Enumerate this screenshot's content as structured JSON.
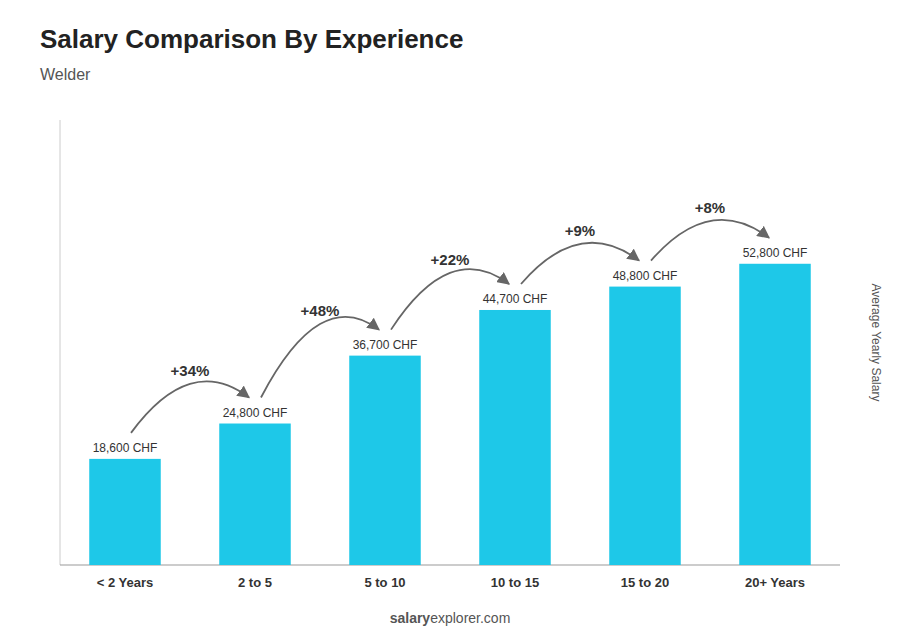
{
  "chart_data": {
    "type": "bar",
    "title": "Salary Comparison By Experience",
    "subtitle": "Welder",
    "ylabel": "Average Yearly Salary",
    "categories": [
      "< 2 Years",
      "2 to 5",
      "5 to 10",
      "10 to 15",
      "15 to 20",
      "20+ Years"
    ],
    "values": [
      18600,
      24800,
      36700,
      44700,
      48800,
      52800
    ],
    "value_labels": [
      "18,600 CHF",
      "24,800 CHF",
      "36,700 CHF",
      "44,700 CHF",
      "48,800 CHF",
      "52,800 CHF"
    ],
    "data_labels": true,
    "annotations": [
      "+34%",
      "+48%",
      "+22%",
      "+9%",
      "+8%"
    ],
    "footer": [
      "salary",
      "explorer",
      ".com"
    ],
    "color": "#1ec8e8",
    "ylim": [
      0,
      78000
    ],
    "tick_labels": "x",
    "grid": false
  }
}
